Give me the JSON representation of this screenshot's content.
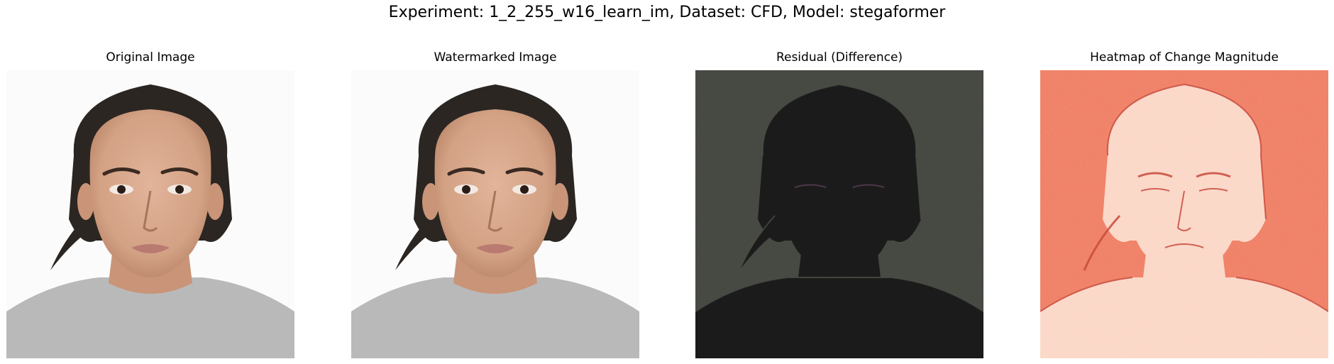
{
  "figure": {
    "title": "Experiment: 1_2_255_w16_learn_im, Dataset: CFD, Model: stegaformer"
  },
  "panels": [
    {
      "title": "Original Image"
    },
    {
      "title": "Watermarked Image"
    },
    {
      "title": "Residual (Difference)"
    },
    {
      "title": "Heatmap of Change Magnitude"
    }
  ],
  "colors": {
    "photo_background": "#fbfbfb",
    "skin": "#d7a68a",
    "hair": "#2b2622",
    "shirt": "#b9b9b9",
    "residual_background": "#3f423b",
    "residual_subject": "#1c1b1b",
    "heatmap_background": "#ef7b60",
    "heatmap_subject": "#fbd8c8"
  }
}
